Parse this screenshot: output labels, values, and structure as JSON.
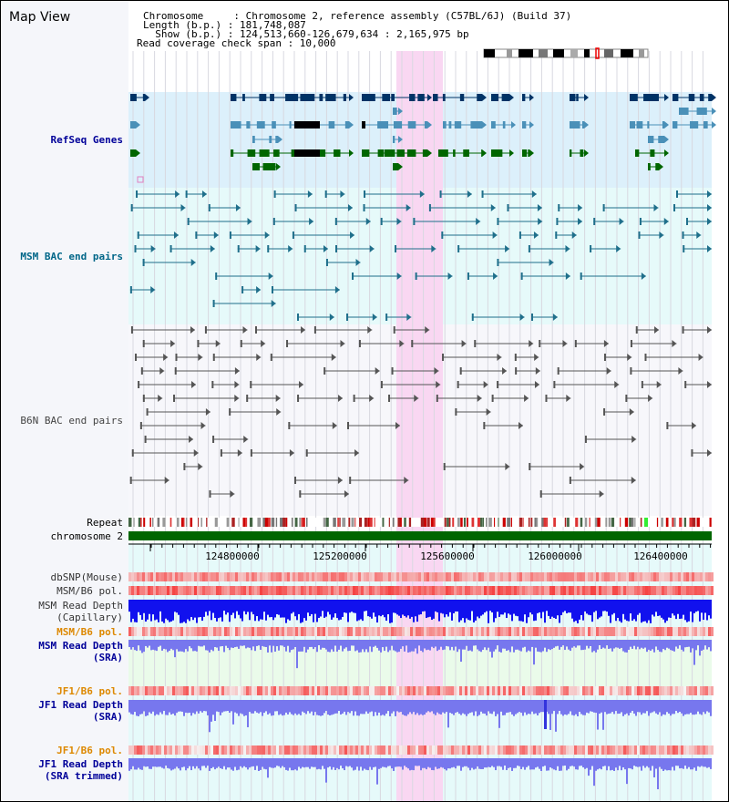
{
  "page": {
    "title": "Map View"
  },
  "header": {
    "line1": "Chromosome     : Chromosome 2, reference assembly (C57BL/6J) (Build 37)",
    "line2": "Length (b.p.) : 181,748,087",
    "line3": "  Show (b.p.) : 124,513,660-126,679,634 : 2,165,975 bp",
    "line4": "Read coverage check span : 10,000"
  },
  "tracks": {
    "refseq": "RefSeq Genes",
    "msm_bac": "MSM BAC end pairs",
    "b6n_bac": "B6N BAC end pairs",
    "repeat": "Repeat",
    "chromosome": "chromosome 2",
    "dbsnp": "dbSNP(Mouse)",
    "msm_b6_pol_1": "MSM/B6 pol.",
    "msm_read_depth_cap_1": "MSM Read Depth",
    "msm_read_depth_cap_2": "(Capillary)",
    "msm_b6_pol_2": "MSM/B6 pol.",
    "msm_read_depth_sra_1": "MSM Read Depth",
    "msm_read_depth_sra_2": "(SRA)",
    "jf1_b6_pol_1": "JF1/B6 pol.",
    "jf1_read_depth_sra_1": "JF1 Read Depth",
    "jf1_read_depth_sra_2": "(SRA)",
    "jf1_b6_pol_2": "JF1/B6 pol.",
    "jf1_read_depth_trim_1": "JF1 Read Depth",
    "jf1_read_depth_trim_2": "(SRA trimmed)"
  },
  "axis": {
    "ticks": [
      "124800000",
      "125200000",
      "125600000",
      "126000000",
      "126400000"
    ]
  },
  "colors": {
    "highlight": "#f9d7f2",
    "refseq_bg": "#dcf0fb",
    "bac_bg": "#e6fafa",
    "refseq_dark": "#003366",
    "refseq_mid": "#4a90b8",
    "refseq_green": "#006600",
    "msm_pair": "#1f6f8b",
    "b6n_pair": "#555555",
    "chromosome": "#006600",
    "label_blue": "#000099",
    "label_teal": "#006688",
    "label_orange": "#dd8800",
    "depth_blue": "#1111ee",
    "depth_light": "#7777ee"
  }
}
